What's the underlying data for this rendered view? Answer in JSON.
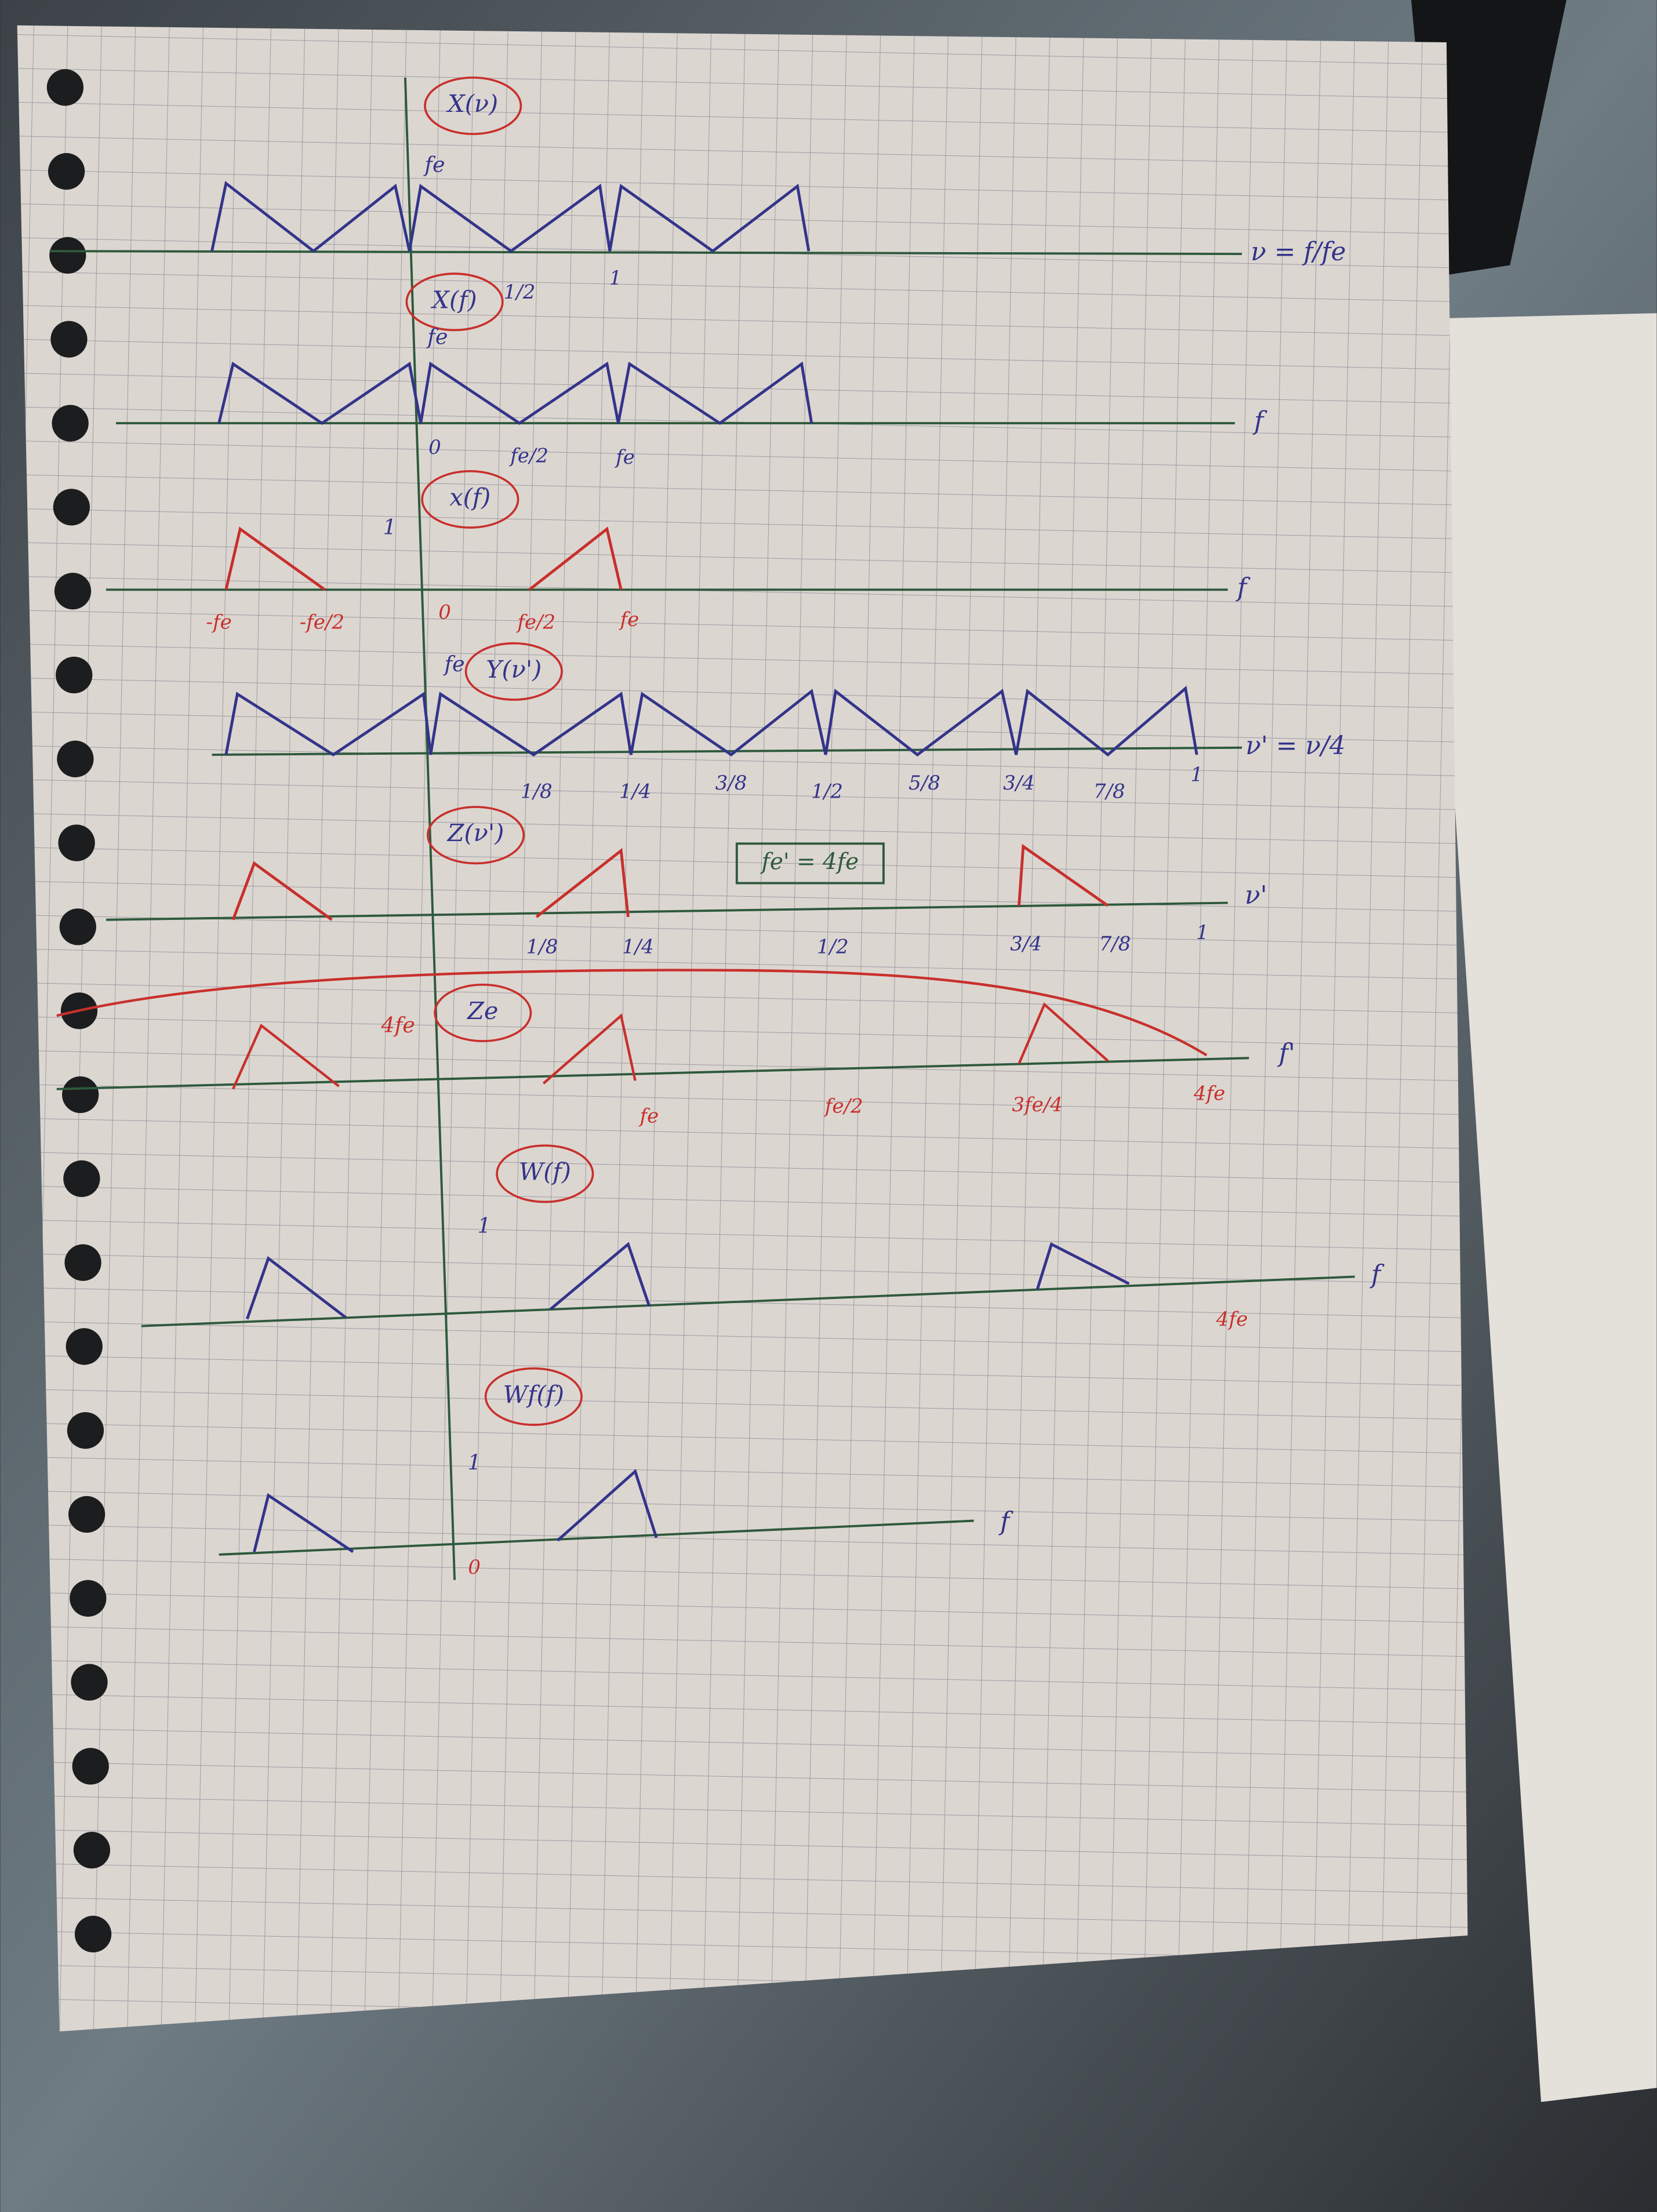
{
  "panels": [
    {
      "label": "X(ν)",
      "value_tick": "fe",
      "axis_label": "ν = f/fe",
      "ticks": [
        "1/2",
        "1"
      ]
    },
    {
      "label": "X(f)",
      "value_tick": "fe",
      "axis_label": "f",
      "ticks": [
        "0",
        "fe/2",
        "fe"
      ]
    },
    {
      "label": "x(f)",
      "value_tick": "1",
      "axis_label": "f",
      "ticks": [
        "-fe",
        "-fe/2",
        "0",
        "fe/2",
        "fe"
      ]
    },
    {
      "label": "Y(ν')",
      "value_tick": "fe",
      "axis_label": "ν' = ν/4",
      "ticks": [
        "1/8",
        "1/4",
        "3/8",
        "1/2",
        "5/8",
        "3/4",
        "7/8",
        "1"
      ]
    },
    {
      "label": "Z(ν')",
      "note": "fe' = 4fe",
      "axis_label": "ν'",
      "ticks": [
        "1/8",
        "1/4",
        "1/2",
        "3/4",
        "7/8",
        "1"
      ]
    },
    {
      "label": "Ze",
      "value_tick": "4fe",
      "axis_label": "f'",
      "ticks": [
        "fe",
        "fe/2",
        "3fe/4",
        "4fe"
      ]
    },
    {
      "label": "W(f)",
      "value_tick": "1",
      "axis_label": "f",
      "ticks": [
        "4fe"
      ]
    },
    {
      "label": "Wf(f)",
      "value_tick": "1",
      "axis_label": "f",
      "ticks": [
        "0"
      ]
    }
  ]
}
